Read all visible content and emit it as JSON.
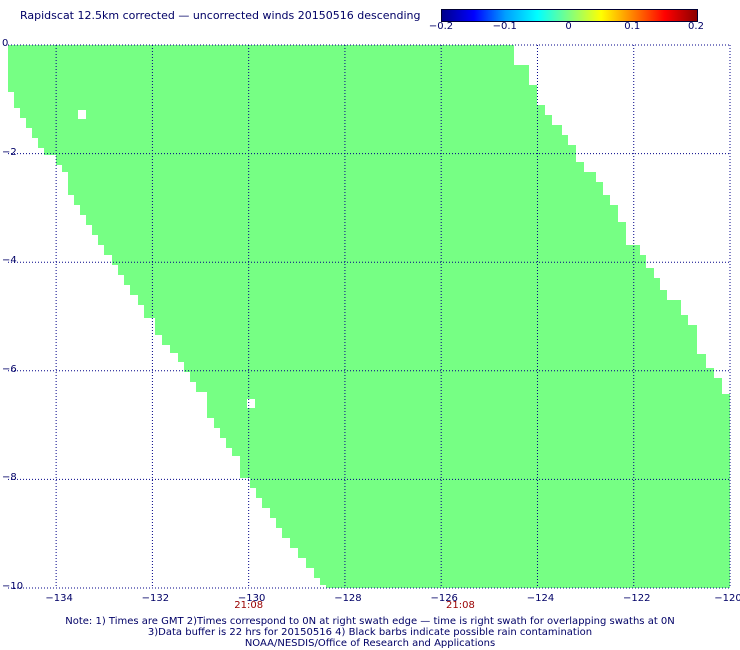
{
  "title": "Rapidscat 12.5km corrected — uncorrected winds 20150516 descending",
  "colorbar": {
    "ticks": [
      "−0.2",
      "−0.1",
      "0",
      "0.1",
      "0.2"
    ],
    "tick_values": [
      -0.2,
      -0.1,
      0,
      0.1,
      0.2
    ],
    "colors": [
      "#00008b",
      "#0000ff",
      "#00a0ff",
      "#00ffff",
      "#80ff80",
      "#ffff00",
      "#ff8000",
      "#ff0000",
      "#8b0000"
    ]
  },
  "map": {
    "lon_range": [
      -135.0,
      -120.0
    ],
    "lat_range": [
      -10.0,
      0.0
    ],
    "x_ticks": [
      "−134",
      "−132",
      "−130",
      "−128",
      "−126",
      "−124",
      "−122",
      "−120"
    ],
    "x_tick_values": [
      -134,
      -132,
      -130,
      -128,
      -126,
      -124,
      -122,
      -120
    ],
    "y_ticks": [
      "0",
      "−2",
      "−4",
      "−6",
      "−8",
      "−10"
    ],
    "y_tick_values": [
      0,
      -2,
      -4,
      -6,
      -8,
      -10
    ],
    "fill_color": "#76ff84",
    "grid_color": "#000088"
  },
  "time_labels": [
    {
      "text": "21:08",
      "lon": -130
    },
    {
      "text": "21:08",
      "lon": -125.6
    }
  ],
  "notes": [
    "Note: 1) Times are GMT 2)Times correspond to 0N at right swath edge — time is right swath for overlapping swaths at 0N",
    "3)Data buffer is 22 hrs for 20150516 4) Black barbs indicate possible rain contamination",
    "NOAA/NESDIS/Office of Research and Applications"
  ]
}
